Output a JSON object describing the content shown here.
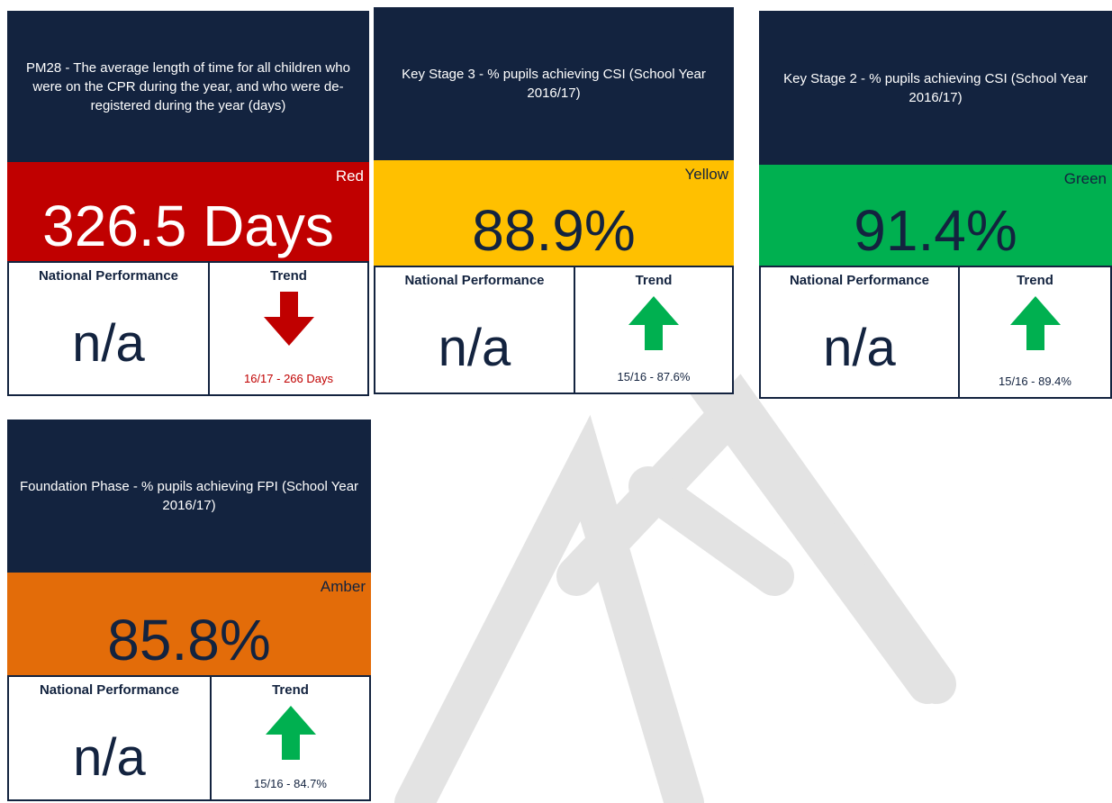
{
  "cards": [
    {
      "title": "PM28 - The average length of time for all children who were on the CPR during the year, and who were de-registered during the year (days)",
      "status": "Red",
      "value": "326.5 Days",
      "national_label": "National Performance",
      "national_value": "n/a",
      "trend_label": "Trend",
      "trend_text": "16/17 - 266 Days",
      "status_color": "#c00000",
      "value_color": "#ffffff",
      "arrow": "down",
      "arrow_color": "#c00000",
      "trend_text_color": "#c00000"
    },
    {
      "title": "Key Stage 3 - % pupils achieving CSI (School Year 2016/17)",
      "status": "Yellow",
      "value": "88.9%",
      "national_label": "National Performance",
      "national_value": "n/a",
      "trend_label": "Trend",
      "trend_text": "15/16 - 87.6%",
      "status_color": "#ffc000",
      "value_color": "#13233f",
      "arrow": "up",
      "arrow_color": "#00b050",
      "trend_text_color": "#13233f"
    },
    {
      "title": "Key Stage 2 - % pupils achieving CSI (School Year 2016/17)",
      "status": "Green",
      "value": "91.4%",
      "national_label": "National Performance",
      "national_value": "n/a",
      "trend_label": "Trend",
      "trend_text": "15/16 - 89.4%",
      "status_color": "#00b050",
      "value_color": "#13233f",
      "arrow": "up",
      "arrow_color": "#00b050",
      "trend_text_color": "#13233f"
    },
    {
      "title": "Foundation Phase - % pupils achieving FPI (School Year 2016/17)",
      "status": "Amber",
      "value": "85.8%",
      "national_label": "National Performance",
      "national_value": "n/a",
      "trend_label": "Trend",
      "trend_text": "15/16 - 84.7%",
      "status_color": "#e36c09",
      "value_color": "#13233f",
      "arrow": "up",
      "arrow_color": "#00b050",
      "trend_text_color": "#13233f"
    }
  ]
}
